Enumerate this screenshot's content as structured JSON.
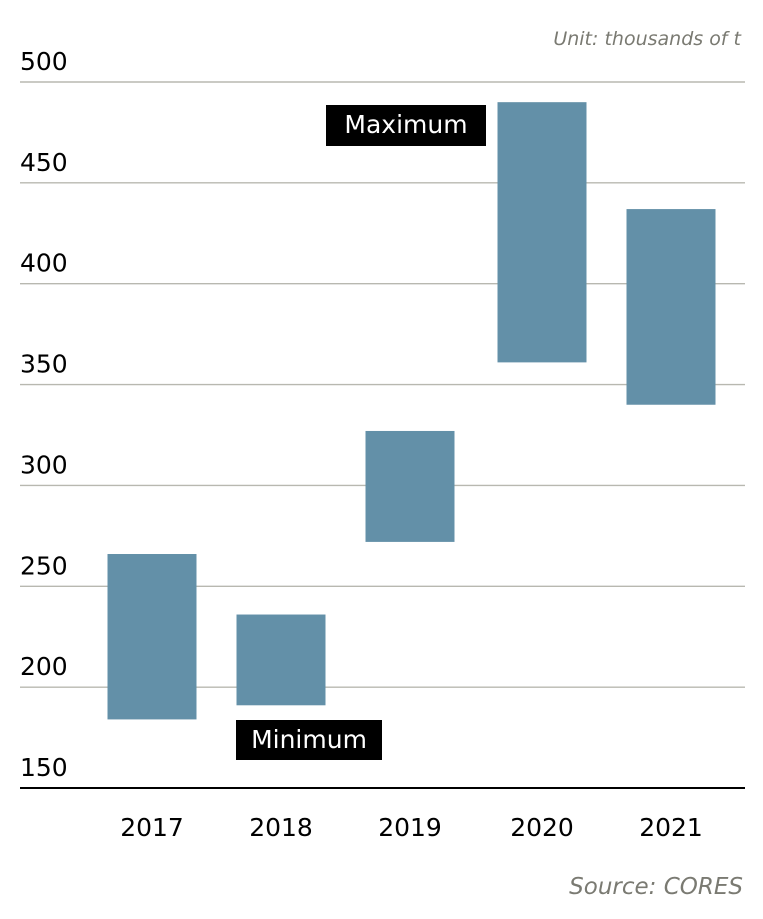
{
  "chart_data": {
    "type": "floating-bar",
    "unit_label": "Unit: thousands of t",
    "source": "Source: CORES",
    "categories": [
      "2017",
      "2018",
      "2019",
      "2020",
      "2021"
    ],
    "series": [
      {
        "min": [
          184,
          191,
          272,
          361,
          340
        ],
        "max": [
          266,
          236,
          327,
          490,
          437
        ]
      }
    ],
    "yticks": [
      150,
      200,
      250,
      300,
      350,
      400,
      450,
      500
    ],
    "ylim": [
      150,
      500
    ],
    "grid": true,
    "annotations": {
      "maximum": "Maximum",
      "minimum": "Minimum"
    },
    "colors": {
      "bar": "#6390a8",
      "grid": "#b8b8b0",
      "axis": "#000000",
      "text": "#000000"
    }
  }
}
